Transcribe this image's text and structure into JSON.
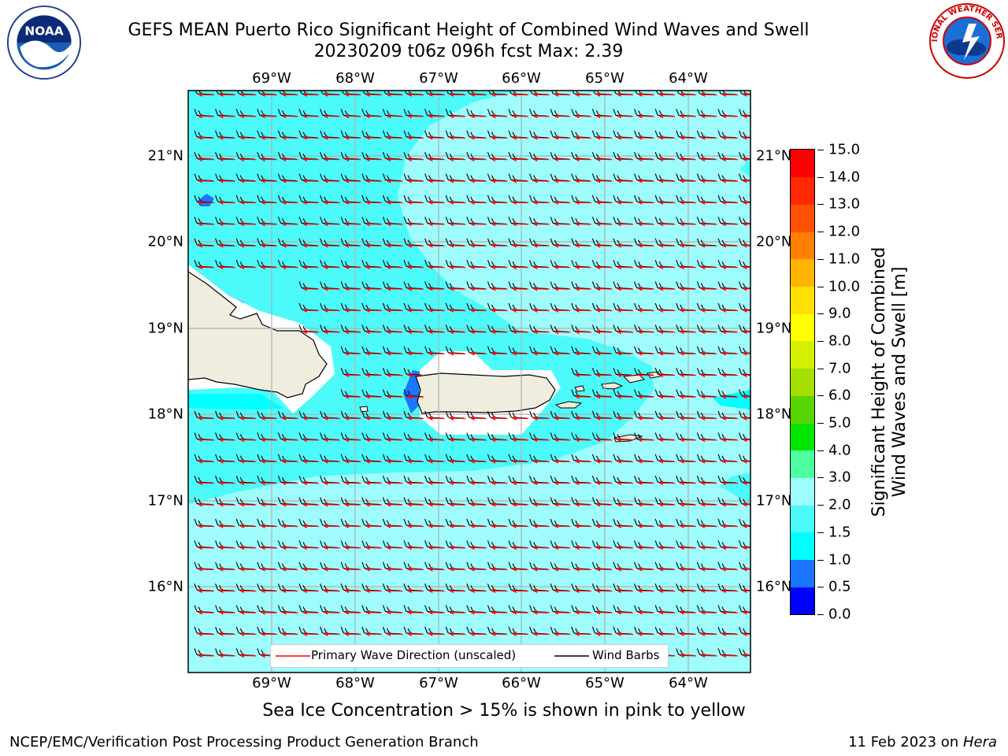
{
  "header": {
    "title_line1": "GEFS MEAN Puerto Rico Significant Height of Combined Wind Waves and Swell",
    "title_line2": "20230209 t06z 096h fcst   Max: 2.39"
  },
  "logos": {
    "left": "NOAA",
    "right": "NATIONAL WEATHER SERVICE"
  },
  "map": {
    "lon_labels": [
      "69°W",
      "68°W",
      "67°W",
      "66°W",
      "65°W",
      "64°W"
    ],
    "lat_labels": [
      "21°N",
      "20°N",
      "19°N",
      "18°N",
      "17°N",
      "16°N"
    ],
    "colors": {
      "wave_arrow": "#ff0000",
      "wind_barb": "#000000",
      "land": "#efeddd",
      "gridline": "#b0b0b0"
    }
  },
  "legend": {
    "primary_wave": "Primary Wave Direction (unscaled)",
    "wind_barbs": "Wind Barbs"
  },
  "colorbar": {
    "label_line1": "Significant Height of Combined",
    "label_line2": "Wind Waves and Swell [m]",
    "ticks": [
      "0.0",
      "0.5",
      "1.0",
      "1.5",
      "2.0",
      "3.0",
      "4.0",
      "5.0",
      "6.0",
      "7.0",
      "8.0",
      "9.0",
      "10.0",
      "11.0",
      "12.0",
      "13.0",
      "14.0",
      "15.0"
    ],
    "colors": [
      "#0000ff",
      "#1a75ff",
      "#00ffff",
      "#4dfafa",
      "#9ffcfc",
      "#4dff9e",
      "#00e600",
      "#5ad400",
      "#a3df00",
      "#d4f000",
      "#ffff00",
      "#ffe000",
      "#ffb400",
      "#ff8000",
      "#ff5000",
      "#ff2800",
      "#ff0000"
    ]
  },
  "footer": {
    "note": "Sea Ice Concentration > 15% is shown in pink to yellow",
    "left": "NCEP/EMC/Verification Post Processing Product Generation Branch",
    "right_date": "11 Feb 2023 on ",
    "right_host": "Hera"
  }
}
